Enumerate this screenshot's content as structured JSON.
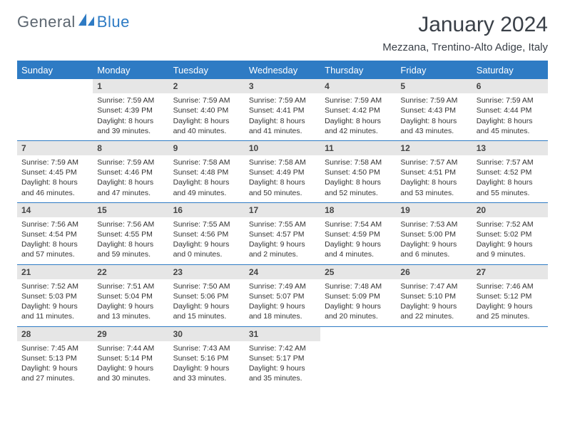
{
  "brand": {
    "part1": "General",
    "part2": "Blue"
  },
  "title": "January 2024",
  "location": "Mezzana, Trentino-Alto Adige, Italy",
  "colors": {
    "accent": "#2e7bc4",
    "header_text": "#5c6670",
    "daynum_bg": "#e6e6e6",
    "body_text": "#333333"
  },
  "day_names": [
    "Sunday",
    "Monday",
    "Tuesday",
    "Wednesday",
    "Thursday",
    "Friday",
    "Saturday"
  ],
  "weeks": [
    [
      {
        "empty": true
      },
      {
        "n": "1",
        "sr": "Sunrise: 7:59 AM",
        "ss": "Sunset: 4:39 PM",
        "d1": "Daylight: 8 hours",
        "d2": "and 39 minutes."
      },
      {
        "n": "2",
        "sr": "Sunrise: 7:59 AM",
        "ss": "Sunset: 4:40 PM",
        "d1": "Daylight: 8 hours",
        "d2": "and 40 minutes."
      },
      {
        "n": "3",
        "sr": "Sunrise: 7:59 AM",
        "ss": "Sunset: 4:41 PM",
        "d1": "Daylight: 8 hours",
        "d2": "and 41 minutes."
      },
      {
        "n": "4",
        "sr": "Sunrise: 7:59 AM",
        "ss": "Sunset: 4:42 PM",
        "d1": "Daylight: 8 hours",
        "d2": "and 42 minutes."
      },
      {
        "n": "5",
        "sr": "Sunrise: 7:59 AM",
        "ss": "Sunset: 4:43 PM",
        "d1": "Daylight: 8 hours",
        "d2": "and 43 minutes."
      },
      {
        "n": "6",
        "sr": "Sunrise: 7:59 AM",
        "ss": "Sunset: 4:44 PM",
        "d1": "Daylight: 8 hours",
        "d2": "and 45 minutes."
      }
    ],
    [
      {
        "n": "7",
        "sr": "Sunrise: 7:59 AM",
        "ss": "Sunset: 4:45 PM",
        "d1": "Daylight: 8 hours",
        "d2": "and 46 minutes."
      },
      {
        "n": "8",
        "sr": "Sunrise: 7:59 AM",
        "ss": "Sunset: 4:46 PM",
        "d1": "Daylight: 8 hours",
        "d2": "and 47 minutes."
      },
      {
        "n": "9",
        "sr": "Sunrise: 7:58 AM",
        "ss": "Sunset: 4:48 PM",
        "d1": "Daylight: 8 hours",
        "d2": "and 49 minutes."
      },
      {
        "n": "10",
        "sr": "Sunrise: 7:58 AM",
        "ss": "Sunset: 4:49 PM",
        "d1": "Daylight: 8 hours",
        "d2": "and 50 minutes."
      },
      {
        "n": "11",
        "sr": "Sunrise: 7:58 AM",
        "ss": "Sunset: 4:50 PM",
        "d1": "Daylight: 8 hours",
        "d2": "and 52 minutes."
      },
      {
        "n": "12",
        "sr": "Sunrise: 7:57 AM",
        "ss": "Sunset: 4:51 PM",
        "d1": "Daylight: 8 hours",
        "d2": "and 53 minutes."
      },
      {
        "n": "13",
        "sr": "Sunrise: 7:57 AM",
        "ss": "Sunset: 4:52 PM",
        "d1": "Daylight: 8 hours",
        "d2": "and 55 minutes."
      }
    ],
    [
      {
        "n": "14",
        "sr": "Sunrise: 7:56 AM",
        "ss": "Sunset: 4:54 PM",
        "d1": "Daylight: 8 hours",
        "d2": "and 57 minutes."
      },
      {
        "n": "15",
        "sr": "Sunrise: 7:56 AM",
        "ss": "Sunset: 4:55 PM",
        "d1": "Daylight: 8 hours",
        "d2": "and 59 minutes."
      },
      {
        "n": "16",
        "sr": "Sunrise: 7:55 AM",
        "ss": "Sunset: 4:56 PM",
        "d1": "Daylight: 9 hours",
        "d2": "and 0 minutes."
      },
      {
        "n": "17",
        "sr": "Sunrise: 7:55 AM",
        "ss": "Sunset: 4:57 PM",
        "d1": "Daylight: 9 hours",
        "d2": "and 2 minutes."
      },
      {
        "n": "18",
        "sr": "Sunrise: 7:54 AM",
        "ss": "Sunset: 4:59 PM",
        "d1": "Daylight: 9 hours",
        "d2": "and 4 minutes."
      },
      {
        "n": "19",
        "sr": "Sunrise: 7:53 AM",
        "ss": "Sunset: 5:00 PM",
        "d1": "Daylight: 9 hours",
        "d2": "and 6 minutes."
      },
      {
        "n": "20",
        "sr": "Sunrise: 7:52 AM",
        "ss": "Sunset: 5:02 PM",
        "d1": "Daylight: 9 hours",
        "d2": "and 9 minutes."
      }
    ],
    [
      {
        "n": "21",
        "sr": "Sunrise: 7:52 AM",
        "ss": "Sunset: 5:03 PM",
        "d1": "Daylight: 9 hours",
        "d2": "and 11 minutes."
      },
      {
        "n": "22",
        "sr": "Sunrise: 7:51 AM",
        "ss": "Sunset: 5:04 PM",
        "d1": "Daylight: 9 hours",
        "d2": "and 13 minutes."
      },
      {
        "n": "23",
        "sr": "Sunrise: 7:50 AM",
        "ss": "Sunset: 5:06 PM",
        "d1": "Daylight: 9 hours",
        "d2": "and 15 minutes."
      },
      {
        "n": "24",
        "sr": "Sunrise: 7:49 AM",
        "ss": "Sunset: 5:07 PM",
        "d1": "Daylight: 9 hours",
        "d2": "and 18 minutes."
      },
      {
        "n": "25",
        "sr": "Sunrise: 7:48 AM",
        "ss": "Sunset: 5:09 PM",
        "d1": "Daylight: 9 hours",
        "d2": "and 20 minutes."
      },
      {
        "n": "26",
        "sr": "Sunrise: 7:47 AM",
        "ss": "Sunset: 5:10 PM",
        "d1": "Daylight: 9 hours",
        "d2": "and 22 minutes."
      },
      {
        "n": "27",
        "sr": "Sunrise: 7:46 AM",
        "ss": "Sunset: 5:12 PM",
        "d1": "Daylight: 9 hours",
        "d2": "and 25 minutes."
      }
    ],
    [
      {
        "n": "28",
        "sr": "Sunrise: 7:45 AM",
        "ss": "Sunset: 5:13 PM",
        "d1": "Daylight: 9 hours",
        "d2": "and 27 minutes."
      },
      {
        "n": "29",
        "sr": "Sunrise: 7:44 AM",
        "ss": "Sunset: 5:14 PM",
        "d1": "Daylight: 9 hours",
        "d2": "and 30 minutes."
      },
      {
        "n": "30",
        "sr": "Sunrise: 7:43 AM",
        "ss": "Sunset: 5:16 PM",
        "d1": "Daylight: 9 hours",
        "d2": "and 33 minutes."
      },
      {
        "n": "31",
        "sr": "Sunrise: 7:42 AM",
        "ss": "Sunset: 5:17 PM",
        "d1": "Daylight: 9 hours",
        "d2": "and 35 minutes."
      },
      {
        "empty": true
      },
      {
        "empty": true
      },
      {
        "empty": true
      }
    ]
  ]
}
